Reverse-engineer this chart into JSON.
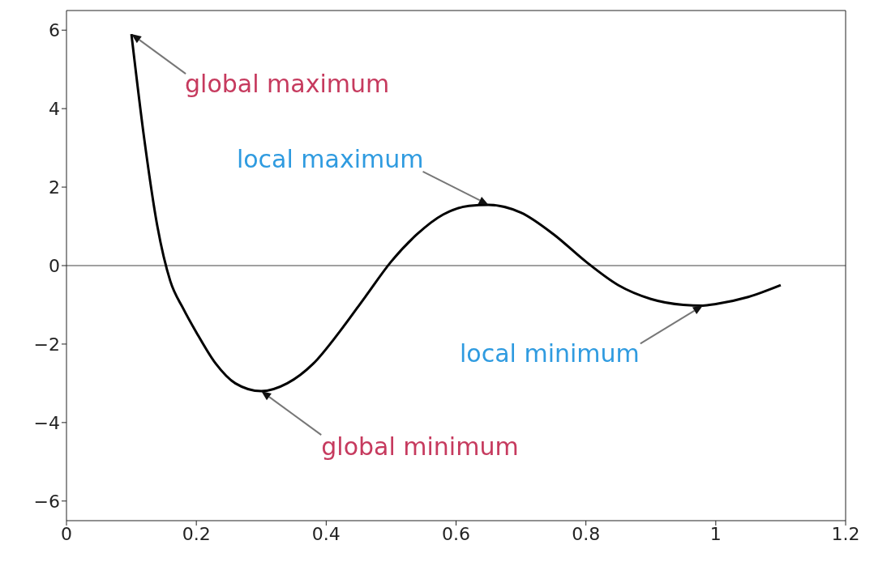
{
  "chart_data": {
    "type": "line",
    "x": [
      0.1,
      0.12,
      0.14,
      0.16,
      0.18,
      0.2,
      0.23,
      0.26,
      0.3,
      0.34,
      0.38,
      0.42,
      0.46,
      0.5,
      0.54,
      0.58,
      0.62,
      0.65,
      0.7,
      0.75,
      0.8,
      0.85,
      0.9,
      0.95,
      0.98,
      1.0,
      1.05,
      1.1
    ],
    "series": [
      {
        "color": "#000000",
        "values": [
          5.9,
          3.2,
          1.0,
          -0.4,
          -1.1,
          -1.7,
          -2.5,
          -3.0,
          -3.2,
          -3.0,
          -2.5,
          -1.7,
          -0.8,
          0.1,
          0.8,
          1.3,
          1.52,
          1.55,
          1.35,
          0.8,
          0.1,
          -0.5,
          -0.85,
          -1.0,
          -1.02,
          -0.98,
          -0.8,
          -0.5
        ]
      }
    ],
    "xlim": [
      0,
      1.2
    ],
    "xticks": [
      0,
      0.2,
      0.4,
      0.6,
      0.8,
      1,
      1.2
    ],
    "ylim": [
      -6.5,
      6.5
    ],
    "yticks": [
      {
        "value": -6,
        "label": "−6"
      },
      {
        "value": -4,
        "label": "−4"
      },
      {
        "value": -2,
        "label": "−2"
      },
      0,
      2,
      4,
      6
    ],
    "ref_lines": [
      {
        "axis": "y",
        "value": 0,
        "color": "#a0a0a0"
      }
    ],
    "marker": "none",
    "line_style": "solid",
    "annotations": [
      {
        "text": "global maximum",
        "x": 0.1,
        "y": 5.9
      },
      {
        "text": "local maximum",
        "x": 0.65,
        "y": 1.55
      },
      {
        "text": "global minimum",
        "x": 0.3,
        "y": -3.2
      },
      {
        "text": "local minimum",
        "x": 0.98,
        "y": -1.02
      }
    ]
  }
}
